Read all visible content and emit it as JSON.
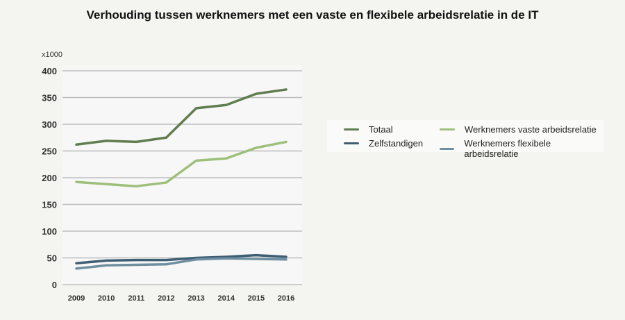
{
  "chart_data": {
    "type": "line",
    "title": "Verhouding tussen werknemers met een vaste en flexibele arbeidsrelatie in de IT",
    "ylabel": "x1000",
    "xlabel": "",
    "categories": [
      "2009",
      "2010",
      "2011",
      "2012",
      "2013",
      "2014",
      "2015",
      "2016"
    ],
    "yticks": [
      "0",
      "50",
      "100",
      "150",
      "200",
      "250",
      "300",
      "350",
      "400"
    ],
    "ylim": [
      0,
      400
    ],
    "grid": true,
    "legend_position": "right",
    "series": [
      {
        "name": "Totaal",
        "color": "#5f7d4e",
        "values": [
          262,
          269,
          267,
          275,
          330,
          336,
          357,
          365
        ]
      },
      {
        "name": "Werknemers vaste arbeidsrelatie",
        "color": "#9dbf7a",
        "values": [
          192,
          188,
          184,
          191,
          232,
          236,
          256,
          267
        ]
      },
      {
        "name": "Zelfstandigen",
        "color": "#3e5f73",
        "values": [
          40,
          45,
          46,
          46,
          50,
          52,
          55,
          52
        ]
      },
      {
        "name": "Werknemers flexibele arbeidsrelatie",
        "color": "#6f8fa0",
        "values": [
          30,
          36,
          37,
          38,
          47,
          49,
          48,
          47
        ]
      }
    ]
  }
}
